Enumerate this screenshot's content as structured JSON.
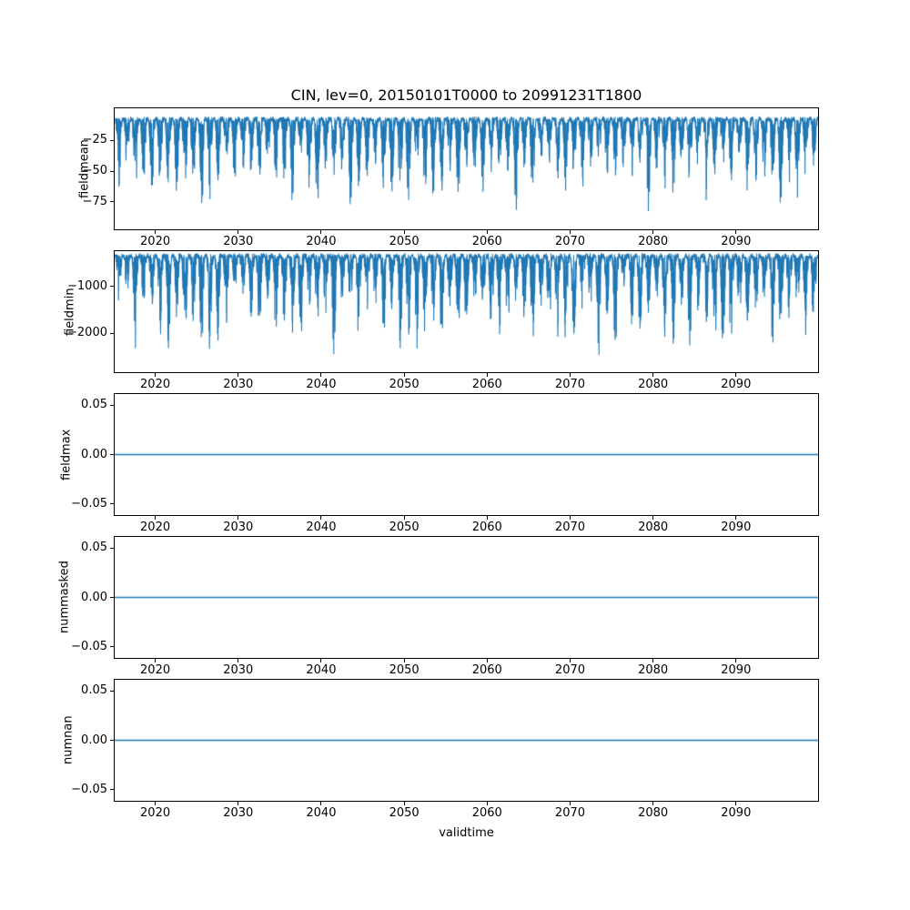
{
  "figure": {
    "title": "CIN, lev=0, 20150101T0000 to 20991231T1800",
    "xlabel": "validtime",
    "background": "#ffffff",
    "line_color": "#1f77b4"
  },
  "chart_data": [
    {
      "id": "fieldmean",
      "type": "line",
      "ylabel": "fieldmean",
      "x_range": [
        2015,
        2100
      ],
      "xticks": [
        {
          "value": 2020,
          "label": "2020"
        },
        {
          "value": 2030,
          "label": "2030"
        },
        {
          "value": 2040,
          "label": "2040"
        },
        {
          "value": 2050,
          "label": "2050"
        },
        {
          "value": 2060,
          "label": "2060"
        },
        {
          "value": 2070,
          "label": "2070"
        },
        {
          "value": 2080,
          "label": "2080"
        },
        {
          "value": 2090,
          "label": "2090"
        }
      ],
      "ylim": [
        -98,
        2
      ],
      "yticks": [
        {
          "value": -25,
          "label": "−25"
        },
        {
          "value": -50,
          "label": "−50"
        },
        {
          "value": -75,
          "label": "−75"
        }
      ],
      "series": [
        {
          "name": "fieldmean",
          "color": "#1f77b4",
          "pattern": "seasonal-spikes",
          "description": "6-hourly mean CIN: dense band near -5 to -25 with annual downward spikes reaching about -70 to -90",
          "typical_max": -5,
          "typical_min": -90,
          "samples": 4200,
          "seed": 42
        }
      ]
    },
    {
      "id": "fieldmin",
      "type": "line",
      "ylabel": "fieldmin",
      "x_range": [
        2015,
        2100
      ],
      "xticks": [
        {
          "value": 2020,
          "label": "2020"
        },
        {
          "value": 2030,
          "label": "2030"
        },
        {
          "value": 2040,
          "label": "2040"
        },
        {
          "value": 2050,
          "label": "2050"
        },
        {
          "value": 2060,
          "label": "2060"
        },
        {
          "value": 2070,
          "label": "2070"
        },
        {
          "value": 2080,
          "label": "2080"
        },
        {
          "value": 2090,
          "label": "2090"
        }
      ],
      "ylim": [
        -2850,
        -230
      ],
      "yticks": [
        {
          "value": -1000,
          "label": "−1000"
        },
        {
          "value": -2000,
          "label": "−2000"
        }
      ],
      "series": [
        {
          "name": "fieldmin",
          "color": "#1f77b4",
          "pattern": "seasonal-spikes",
          "description": "6-hourly minimum CIN: dense band near -300 to -800 with annual downward spikes reaching about -2000 to -2700",
          "typical_max": -280,
          "typical_min": -2700,
          "samples": 4200,
          "seed": 1337
        }
      ]
    },
    {
      "id": "fieldmax",
      "type": "line",
      "ylabel": "fieldmax",
      "x_range": [
        2015,
        2100
      ],
      "xticks": [
        {
          "value": 2020,
          "label": "2020"
        },
        {
          "value": 2030,
          "label": "2030"
        },
        {
          "value": 2040,
          "label": "2040"
        },
        {
          "value": 2050,
          "label": "2050"
        },
        {
          "value": 2060,
          "label": "2060"
        },
        {
          "value": 2070,
          "label": "2070"
        },
        {
          "value": 2080,
          "label": "2080"
        },
        {
          "value": 2090,
          "label": "2090"
        }
      ],
      "ylim": [
        -0.062,
        0.062
      ],
      "yticks": [
        {
          "value": 0.05,
          "label": "0.05"
        },
        {
          "value": 0.0,
          "label": "0.00"
        },
        {
          "value": -0.05,
          "label": "−0.05"
        }
      ],
      "series": [
        {
          "name": "fieldmax",
          "color": "#1f77b4",
          "pattern": "constant",
          "value": 0,
          "samples": 2,
          "seed": 0
        }
      ]
    },
    {
      "id": "nummasked",
      "type": "line",
      "ylabel": "nummasked",
      "x_range": [
        2015,
        2100
      ],
      "xticks": [
        {
          "value": 2020,
          "label": "2020"
        },
        {
          "value": 2030,
          "label": "2030"
        },
        {
          "value": 2040,
          "label": "2040"
        },
        {
          "value": 2050,
          "label": "2050"
        },
        {
          "value": 2060,
          "label": "2060"
        },
        {
          "value": 2070,
          "label": "2070"
        },
        {
          "value": 2080,
          "label": "2080"
        },
        {
          "value": 2090,
          "label": "2090"
        }
      ],
      "ylim": [
        -0.062,
        0.062
      ],
      "yticks": [
        {
          "value": 0.05,
          "label": "0.05"
        },
        {
          "value": 0.0,
          "label": "0.00"
        },
        {
          "value": -0.05,
          "label": "−0.05"
        }
      ],
      "series": [
        {
          "name": "nummasked",
          "color": "#1f77b4",
          "pattern": "constant",
          "value": 0,
          "samples": 2,
          "seed": 0
        }
      ]
    },
    {
      "id": "numnan",
      "type": "line",
      "ylabel": "numnan",
      "x_range": [
        2015,
        2100
      ],
      "xticks": [
        {
          "value": 2020,
          "label": "2020"
        },
        {
          "value": 2030,
          "label": "2030"
        },
        {
          "value": 2040,
          "label": "2040"
        },
        {
          "value": 2050,
          "label": "2050"
        },
        {
          "value": 2060,
          "label": "2060"
        },
        {
          "value": 2070,
          "label": "2070"
        },
        {
          "value": 2080,
          "label": "2080"
        },
        {
          "value": 2090,
          "label": "2090"
        }
      ],
      "ylim": [
        -0.062,
        0.062
      ],
      "yticks": [
        {
          "value": 0.05,
          "label": "0.05"
        },
        {
          "value": 0.0,
          "label": "0.00"
        },
        {
          "value": -0.05,
          "label": "−0.05"
        }
      ],
      "series": [
        {
          "name": "numnan",
          "color": "#1f77b4",
          "pattern": "constant",
          "value": 0,
          "samples": 2,
          "seed": 0
        }
      ]
    }
  ]
}
